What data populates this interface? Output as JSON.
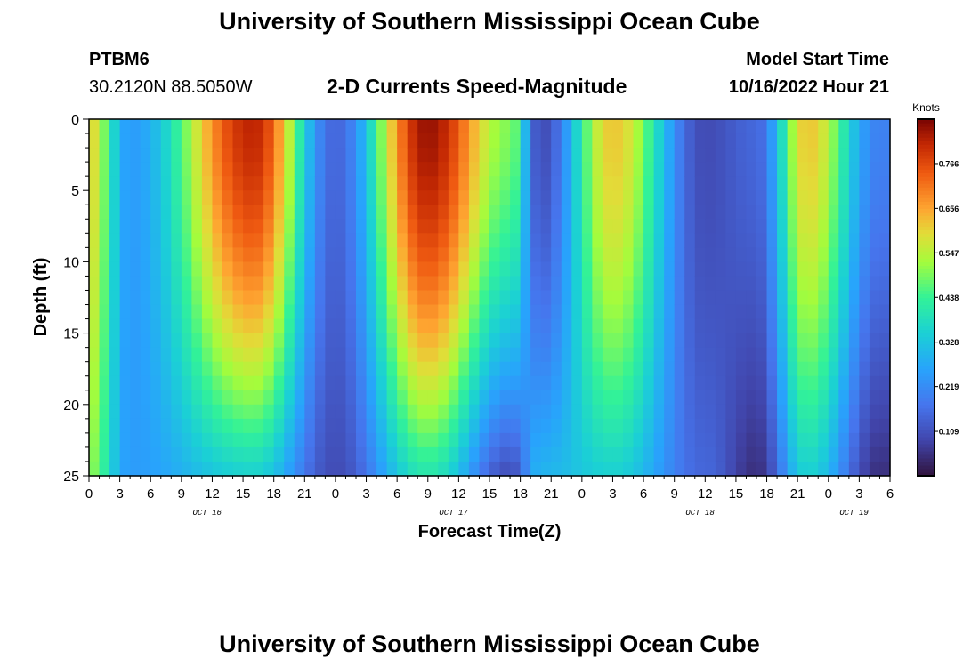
{
  "header": {
    "title": "University of Southern Mississippi Ocean Cube",
    "station_id": "PTBM6",
    "coordinates": "30.2120N  88.5050W",
    "plot_title": "2-D Currents Speed-Magnitude",
    "model_start_label": "Model Start Time",
    "model_start_time": "10/16/2022 Hour 21"
  },
  "footer": {
    "title": "University of Southern Mississippi Ocean Cube"
  },
  "chart_data": {
    "type": "heatmap",
    "title": "2-D Currents Speed-Magnitude",
    "xlabel": "Forecast Time(Z)",
    "ylabel": "Depth (ft)",
    "xlim": [
      0,
      78
    ],
    "ylim": [
      0,
      25
    ],
    "y_inverted": true,
    "y_ticks": [
      0,
      5,
      10,
      15,
      20,
      25
    ],
    "x_tick_labels": [
      "0",
      "3",
      "6",
      "9",
      "12",
      "15",
      "18",
      "21",
      "0",
      "3",
      "6",
      "9",
      "12",
      "15",
      "18",
      "21",
      "0",
      "3",
      "6",
      "9",
      "12",
      "15",
      "18",
      "21",
      "0",
      "3",
      "6"
    ],
    "date_labels": [
      {
        "label": "OCT 16",
        "hour": 11.5
      },
      {
        "label": "OCT 17",
        "hour": 35.5
      },
      {
        "label": "OCT 18",
        "hour": 59.5
      },
      {
        "label": "OCT 19",
        "hour": 74.5
      }
    ],
    "colorbar": {
      "label": "Knots",
      "min": 0.0,
      "max": 0.875,
      "ticks": [
        "0.766",
        "0.656",
        "0.547",
        "0.438",
        "0.328",
        "0.219",
        "0.109"
      ]
    },
    "speed_peaks_knots": [
      {
        "hour": 0,
        "surface": 0.6,
        "bottom": 0.5
      },
      {
        "hour": 4,
        "surface": 0.25,
        "bottom": 0.25
      },
      {
        "hour": 16,
        "surface": 0.82,
        "bottom": 0.35
      },
      {
        "hour": 24,
        "surface": 0.15,
        "bottom": 0.1
      },
      {
        "hour": 33,
        "surface": 0.85,
        "bottom": 0.4
      },
      {
        "hour": 41,
        "surface": 0.5,
        "bottom": 0.1
      },
      {
        "hour": 44,
        "surface": 0.1,
        "bottom": 0.3
      },
      {
        "hour": 51,
        "surface": 0.62,
        "bottom": 0.35
      },
      {
        "hour": 60,
        "surface": 0.1,
        "bottom": 0.15
      },
      {
        "hour": 65,
        "surface": 0.15,
        "bottom": 0.05
      },
      {
        "hour": 70,
        "surface": 0.62,
        "bottom": 0.35
      },
      {
        "hour": 77,
        "surface": 0.2,
        "bottom": 0.05
      }
    ]
  }
}
